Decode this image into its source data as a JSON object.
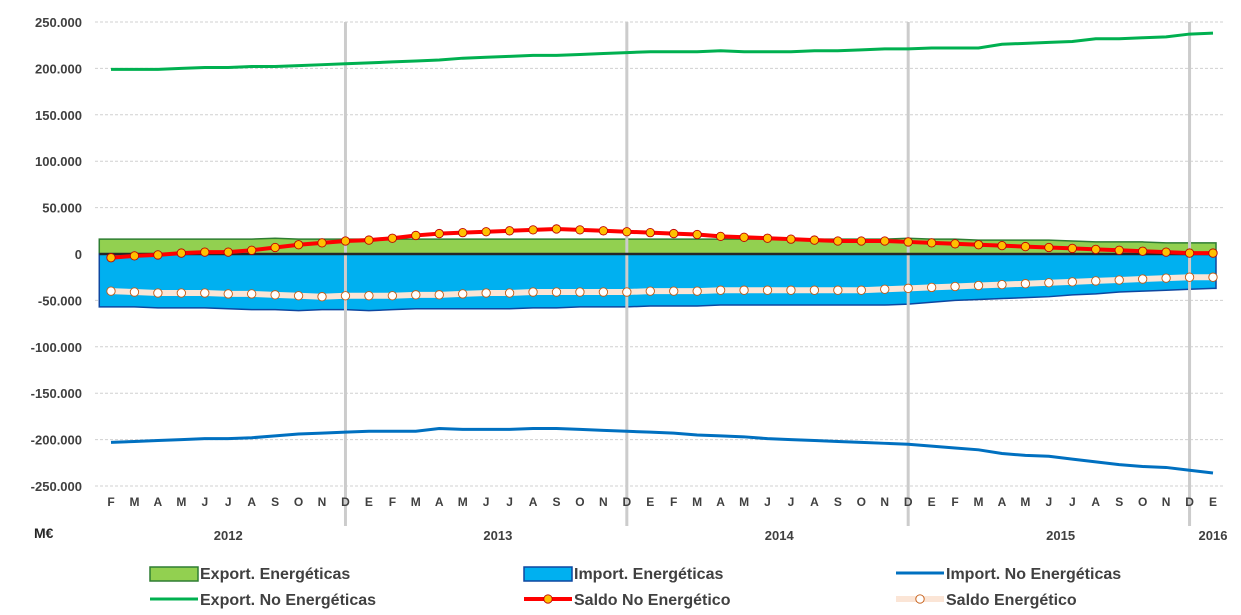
{
  "chart_data": {
    "type": "line",
    "unit_label": "M€",
    "ylim": [
      -250000,
      250000
    ],
    "yticks": [
      250000,
      200000,
      150000,
      100000,
      50000,
      0,
      -50000,
      -100000,
      -150000,
      -200000,
      -250000
    ],
    "ytick_labels": [
      "250.000",
      "200.000",
      "150.000",
      "100.000",
      "50.000",
      "0",
      "-50.000",
      "-100.000",
      "-150.000",
      "-200.000",
      "-250.000"
    ],
    "categories": [
      "F",
      "M",
      "A",
      "M",
      "J",
      "J",
      "A",
      "S",
      "O",
      "N",
      "D",
      "E",
      "F",
      "M",
      "A",
      "M",
      "J",
      "J",
      "A",
      "S",
      "O",
      "N",
      "D",
      "E",
      "F",
      "M",
      "A",
      "M",
      "J",
      "J",
      "A",
      "S",
      "O",
      "N",
      "D",
      "E",
      "F",
      "M",
      "A",
      "M",
      "J",
      "J",
      "A",
      "S",
      "O",
      "N",
      "D",
      "E"
    ],
    "years": [
      {
        "label": "2012",
        "start": 0,
        "end": 10
      },
      {
        "label": "2013",
        "start": 11,
        "end": 22
      },
      {
        "label": "2014",
        "start": 23,
        "end": 34
      },
      {
        "label": "2015",
        "start": 35,
        "end": 46
      },
      {
        "label": "2016",
        "start": 47,
        "end": 47
      }
    ],
    "year_separators_after": [
      10,
      22,
      34,
      46
    ],
    "grid": true,
    "legend_position": "bottom",
    "series": [
      {
        "name": "Export. Energéticas",
        "kind": "area",
        "color": "#92d050",
        "edge": "#2e7d32",
        "values": [
          16000,
          16000,
          16000,
          16000,
          16000,
          16000,
          16000,
          17000,
          16000,
          16000,
          16000,
          16000,
          16000,
          16000,
          16000,
          16000,
          16000,
          16000,
          16000,
          16000,
          16000,
          16000,
          16000,
          16000,
          16000,
          16000,
          16000,
          16000,
          16000,
          16000,
          16000,
          16000,
          16000,
          16000,
          17000,
          16000,
          16000,
          15000,
          15000,
          15000,
          15000,
          14000,
          13000,
          13000,
          13000,
          12000,
          12000,
          12000
        ]
      },
      {
        "name": "Import. Energéticas",
        "kind": "area",
        "color": "#00b0f0",
        "edge": "#0d47a1",
        "values": [
          -57000,
          -57000,
          -58000,
          -58000,
          -58000,
          -59000,
          -60000,
          -60000,
          -61000,
          -60000,
          -60000,
          -61000,
          -60000,
          -59000,
          -59000,
          -59000,
          -59000,
          -59000,
          -58000,
          -58000,
          -57000,
          -57000,
          -57000,
          -56000,
          -56000,
          -56000,
          -55000,
          -55000,
          -55000,
          -55000,
          -55000,
          -55000,
          -55000,
          -55000,
          -54000,
          -52000,
          -50000,
          -49000,
          -48000,
          -47000,
          -46000,
          -44000,
          -43000,
          -41000,
          -40000,
          -39000,
          -38000,
          -37000
        ]
      },
      {
        "name": "Import. No Energéticas",
        "kind": "line",
        "color": "#0070c0",
        "values": [
          -203000,
          -202000,
          -201000,
          -200000,
          -199000,
          -199000,
          -198000,
          -196000,
          -194000,
          -193000,
          -192000,
          -191000,
          -191000,
          -191000,
          -188000,
          -189000,
          -189000,
          -189000,
          -188000,
          -188000,
          -189000,
          -190000,
          -191000,
          -192000,
          -193000,
          -195000,
          -196000,
          -197000,
          -199000,
          -200000,
          -201000,
          -202000,
          -203000,
          -204000,
          -205000,
          -207000,
          -209000,
          -211000,
          -215000,
          -217000,
          -218000,
          -221000,
          -224000,
          -227000,
          -229000,
          -230000,
          -233000,
          -236000
        ]
      },
      {
        "name": "Export. No Energéticas",
        "kind": "line",
        "color": "#00b050",
        "values": [
          199000,
          199000,
          199000,
          200000,
          201000,
          201000,
          202000,
          202000,
          203000,
          204000,
          205000,
          206000,
          207000,
          208000,
          209000,
          211000,
          212000,
          213000,
          214000,
          214000,
          215000,
          216000,
          217000,
          218000,
          218000,
          218000,
          219000,
          218000,
          218000,
          218000,
          219000,
          219000,
          220000,
          221000,
          221000,
          222000,
          222000,
          222000,
          226000,
          227000,
          228000,
          229000,
          232000,
          232000,
          233000,
          234000,
          237000,
          238000
        ]
      },
      {
        "name": "Saldo No Energético",
        "kind": "line-marker",
        "color": "#ff0000",
        "marker_fill": "#ffc000",
        "values": [
          -4000,
          -2000,
          -1000,
          1000,
          2000,
          2000,
          4000,
          7000,
          10000,
          12000,
          14000,
          15000,
          17000,
          20000,
          22000,
          23000,
          24000,
          25000,
          26000,
          27000,
          26000,
          25000,
          24000,
          23000,
          22000,
          21000,
          19000,
          18000,
          17000,
          16000,
          15000,
          14000,
          14000,
          14000,
          13000,
          12000,
          11000,
          10000,
          9000,
          8000,
          7000,
          6000,
          5000,
          4000,
          3000,
          2000,
          1000,
          1000
        ]
      },
      {
        "name": "Saldo Energético",
        "kind": "line-marker",
        "color": "#fbe5d6",
        "marker_fill": "#ffffff",
        "values": [
          -40000,
          -41000,
          -42000,
          -42000,
          -42000,
          -43000,
          -43000,
          -44000,
          -45000,
          -46000,
          -45000,
          -45000,
          -45000,
          -44000,
          -44000,
          -43000,
          -42000,
          -42000,
          -41000,
          -41000,
          -41000,
          -41000,
          -41000,
          -40000,
          -40000,
          -40000,
          -39000,
          -39000,
          -39000,
          -39000,
          -39000,
          -39000,
          -39000,
          -38000,
          -37000,
          -36000,
          -35000,
          -34000,
          -33000,
          -32000,
          -31000,
          -30000,
          -29000,
          -28000,
          -27000,
          -26000,
          -25000,
          -25000
        ]
      }
    ]
  }
}
